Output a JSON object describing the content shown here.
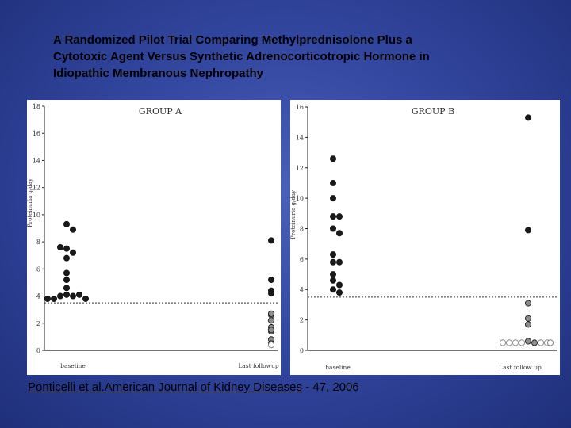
{
  "slide": {
    "title_lines": [
      "A Randomized Pilot Trial Comparing Methylprednisolone Plus a",
      "Cytotoxic Agent Versus Synthetic Adrenocorticotropic Hormone in",
      "Idiopathic Membranous Nephropathy"
    ],
    "citation_ref": "Ponticelli et al.American Journal of Kidney Diseases",
    "citation_rest": " -  47, 2006"
  },
  "colors": {
    "background": "#3347a0",
    "panel": "#ffffff",
    "dot_black": "#1a1a1a",
    "dot_gray": "#8c8c8c",
    "dot_open": "#ffffff"
  },
  "chart_data": [
    {
      "type": "scatter",
      "title": "GROUP A",
      "ylabel": "Proteinuria g/day",
      "ylim": [
        0,
        18
      ],
      "yticks": [
        0,
        2,
        4,
        6,
        8,
        10,
        12,
        14,
        16,
        18
      ],
      "categories": [
        "baseline",
        "Last followup"
      ],
      "reference_line": 3.5,
      "points": [
        {
          "x": "baseline",
          "y": 9.3,
          "fill": "black"
        },
        {
          "x": "baseline",
          "y": 8.9,
          "fill": "black"
        },
        {
          "x": "baseline",
          "y": 7.5,
          "fill": "black"
        },
        {
          "x": "baseline",
          "y": 7.2,
          "fill": "black"
        },
        {
          "x": "baseline",
          "y": 7.6,
          "fill": "black"
        },
        {
          "x": "baseline",
          "y": 6.8,
          "fill": "black"
        },
        {
          "x": "baseline",
          "y": 5.7,
          "fill": "black"
        },
        {
          "x": "baseline",
          "y": 5.2,
          "fill": "black"
        },
        {
          "x": "baseline",
          "y": 4.6,
          "fill": "black"
        },
        {
          "x": "baseline",
          "y": 4.1,
          "fill": "black"
        },
        {
          "x": "baseline",
          "y": 4.0,
          "fill": "black"
        },
        {
          "x": "baseline",
          "y": 4.0,
          "fill": "black"
        },
        {
          "x": "baseline",
          "y": 4.1,
          "fill": "black"
        },
        {
          "x": "baseline",
          "y": 3.8,
          "fill": "black"
        },
        {
          "x": "baseline",
          "y": 3.8,
          "fill": "black"
        },
        {
          "x": "baseline",
          "y": 3.8,
          "fill": "black"
        },
        {
          "x": "Last followup",
          "y": 8.1,
          "fill": "black"
        },
        {
          "x": "Last followup",
          "y": 5.2,
          "fill": "black"
        },
        {
          "x": "Last followup",
          "y": 4.4,
          "fill": "black"
        },
        {
          "x": "Last followup",
          "y": 4.2,
          "fill": "black"
        },
        {
          "x": "Last followup",
          "y": 2.6,
          "fill": "gray"
        },
        {
          "x": "Last followup",
          "y": 2.2,
          "fill": "gray"
        },
        {
          "x": "Last followup",
          "y": 2.7,
          "fill": "gray"
        },
        {
          "x": "Last followup",
          "y": 1.7,
          "fill": "gray"
        },
        {
          "x": "Last followup",
          "y": 1.4,
          "fill": "gray"
        },
        {
          "x": "Last followup",
          "y": 1.5,
          "fill": "gray"
        },
        {
          "x": "Last followup",
          "y": 0.8,
          "fill": "gray"
        },
        {
          "x": "Last followup",
          "y": 0.5,
          "fill": "gray"
        },
        {
          "x": "Last followup",
          "y": 0.4,
          "fill": "open"
        },
        {
          "x": "Last followup",
          "y": 0.4,
          "fill": "open"
        },
        {
          "x": "Last followup",
          "y": 0.4,
          "fill": "open"
        },
        {
          "x": "Last followup",
          "y": 0.4,
          "fill": "open"
        }
      ]
    },
    {
      "type": "scatter",
      "title": "GROUP B",
      "ylabel": "Proteinuria g/day",
      "ylim": [
        0,
        16
      ],
      "yticks": [
        0,
        2,
        4,
        6,
        8,
        10,
        12,
        14,
        16
      ],
      "categories": [
        "baseline",
        "Last follow up"
      ],
      "reference_line": 3.5,
      "points": [
        {
          "x": "baseline",
          "y": 12.6,
          "fill": "black"
        },
        {
          "x": "baseline",
          "y": 11.0,
          "fill": "black"
        },
        {
          "x": "baseline",
          "y": 10.0,
          "fill": "black"
        },
        {
          "x": "baseline",
          "y": 8.8,
          "fill": "black"
        },
        {
          "x": "baseline",
          "y": 8.8,
          "fill": "black"
        },
        {
          "x": "baseline",
          "y": 8.0,
          "fill": "black"
        },
        {
          "x": "baseline",
          "y": 7.7,
          "fill": "black"
        },
        {
          "x": "baseline",
          "y": 6.3,
          "fill": "black"
        },
        {
          "x": "baseline",
          "y": 5.8,
          "fill": "black"
        },
        {
          "x": "baseline",
          "y": 5.8,
          "fill": "black"
        },
        {
          "x": "baseline",
          "y": 5.0,
          "fill": "black"
        },
        {
          "x": "baseline",
          "y": 4.6,
          "fill": "black"
        },
        {
          "x": "baseline",
          "y": 4.3,
          "fill": "black"
        },
        {
          "x": "baseline",
          "y": 4.0,
          "fill": "black"
        },
        {
          "x": "baseline",
          "y": 3.8,
          "fill": "black"
        },
        {
          "x": "Last follow up",
          "y": 15.3,
          "fill": "black"
        },
        {
          "x": "Last follow up",
          "y": 7.9,
          "fill": "black"
        },
        {
          "x": "Last follow up",
          "y": 3.1,
          "fill": "gray"
        },
        {
          "x": "Last follow up",
          "y": 2.1,
          "fill": "gray"
        },
        {
          "x": "Last follow up",
          "y": 1.7,
          "fill": "gray"
        },
        {
          "x": "Last follow up",
          "y": 0.6,
          "fill": "gray"
        },
        {
          "x": "Last follow up",
          "y": 0.5,
          "fill": "gray"
        },
        {
          "x": "Last follow up",
          "y": 0.5,
          "fill": "open"
        },
        {
          "x": "Last follow up",
          "y": 0.5,
          "fill": "open"
        },
        {
          "x": "Last follow up",
          "y": 0.5,
          "fill": "open"
        },
        {
          "x": "Last follow up",
          "y": 0.5,
          "fill": "open"
        },
        {
          "x": "Last follow up",
          "y": 0.5,
          "fill": "open"
        },
        {
          "x": "Last follow up",
          "y": 0.5,
          "fill": "open"
        },
        {
          "x": "Last follow up",
          "y": 0.5,
          "fill": "open"
        },
        {
          "x": "Last follow up",
          "y": 0.5,
          "fill": "open"
        }
      ]
    }
  ]
}
